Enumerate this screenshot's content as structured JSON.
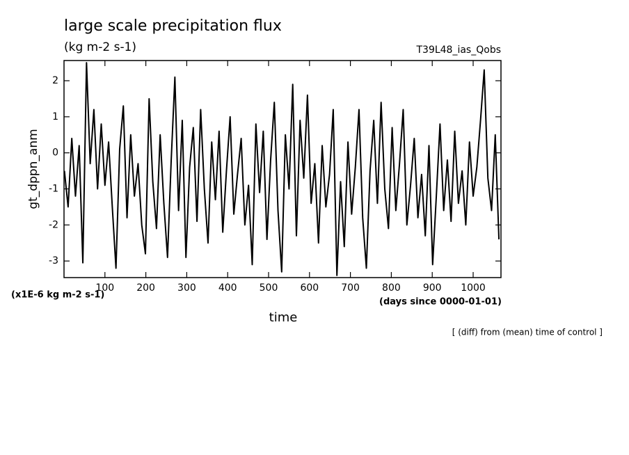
{
  "chart_data": {
    "type": "line",
    "title": "large scale precipitation flux",
    "subtitle": "(kg m-2 s-1)",
    "experiment": "T39L48_ias_Qobs",
    "y_label": "gt_dppn_anm",
    "y_unit": "(x1E-6 kg m-2 s-1)",
    "x_label": "time",
    "x_unit": "(days since 0000-01-01)",
    "note": "[ (diff) from (mean) time of control ]",
    "color": "#000000",
    "xlim": [
      0,
      1068
    ],
    "ylim": [
      -3.46,
      2.56
    ],
    "xticks": [
      100,
      200,
      300,
      400,
      500,
      600,
      700,
      800,
      900,
      1000
    ],
    "yticks": [
      -3,
      -2,
      -1,
      0,
      1,
      2
    ],
    "x": [
      1,
      10,
      19,
      28,
      37,
      46,
      55,
      64,
      73,
      82,
      91,
      100,
      109,
      118,
      127,
      136,
      145,
      154,
      163,
      172,
      181,
      190,
      199,
      208,
      217,
      226,
      235,
      244,
      253,
      262,
      271,
      280,
      289,
      298,
      307,
      316,
      325,
      334,
      343,
      352,
      361,
      370,
      379,
      388,
      397,
      406,
      415,
      424,
      433,
      442,
      451,
      460,
      469,
      478,
      487,
      496,
      505,
      514,
      523,
      532,
      541,
      550,
      559,
      568,
      577,
      586,
      595,
      604,
      613,
      622,
      631,
      640,
      649,
      658,
      667,
      676,
      685,
      694,
      703,
      712,
      721,
      730,
      739,
      748,
      757,
      766,
      775,
      784,
      793,
      802,
      811,
      820,
      829,
      838,
      847,
      856,
      865,
      874,
      883,
      892,
      901,
      910,
      919,
      928,
      937,
      946,
      955,
      964,
      973,
      982,
      991,
      1000,
      1009,
      1018,
      1027,
      1036,
      1045,
      1054,
      1063
    ],
    "values": [
      -0.5,
      -1.5,
      0.4,
      -1.2,
      0.2,
      -3.05,
      2.5,
      -0.3,
      1.2,
      -1.0,
      0.8,
      -0.9,
      0.3,
      -1.5,
      -3.2,
      0.1,
      1.3,
      -1.8,
      0.5,
      -1.2,
      -0.3,
      -2.0,
      -2.8,
      1.5,
      -0.8,
      -2.1,
      0.5,
      -1.4,
      -2.9,
      -0.2,
      2.1,
      -1.6,
      0.9,
      -2.9,
      -0.4,
      0.7,
      -1.9,
      1.2,
      -1.0,
      -2.5,
      0.3,
      -1.3,
      0.6,
      -2.2,
      -0.5,
      1.0,
      -1.7,
      -0.6,
      0.4,
      -2.0,
      -0.9,
      -3.1,
      0.8,
      -1.1,
      0.6,
      -2.4,
      -0.2,
      1.4,
      -1.6,
      -3.3,
      0.5,
      -1.0,
      1.9,
      -2.3,
      0.9,
      -0.7,
      1.6,
      -1.4,
      -0.3,
      -2.5,
      0.2,
      -1.5,
      -0.6,
      1.2,
      -3.4,
      -0.8,
      -2.6,
      0.3,
      -1.7,
      -0.4,
      1.2,
      -1.8,
      -3.2,
      -0.5,
      0.9,
      -1.4,
      1.4,
      -1.0,
      -2.1,
      0.7,
      -1.6,
      -0.3,
      1.2,
      -2.0,
      -0.9,
      0.4,
      -1.8,
      -0.6,
      -2.3,
      0.2,
      -3.1,
      -1.2,
      0.8,
      -1.6,
      -0.2,
      -1.9,
      0.6,
      -1.4,
      -0.5,
      -2.0,
      0.3,
      -1.2,
      -0.4,
      0.9,
      2.3,
      -0.7,
      -1.6,
      0.5,
      -2.4
    ]
  }
}
